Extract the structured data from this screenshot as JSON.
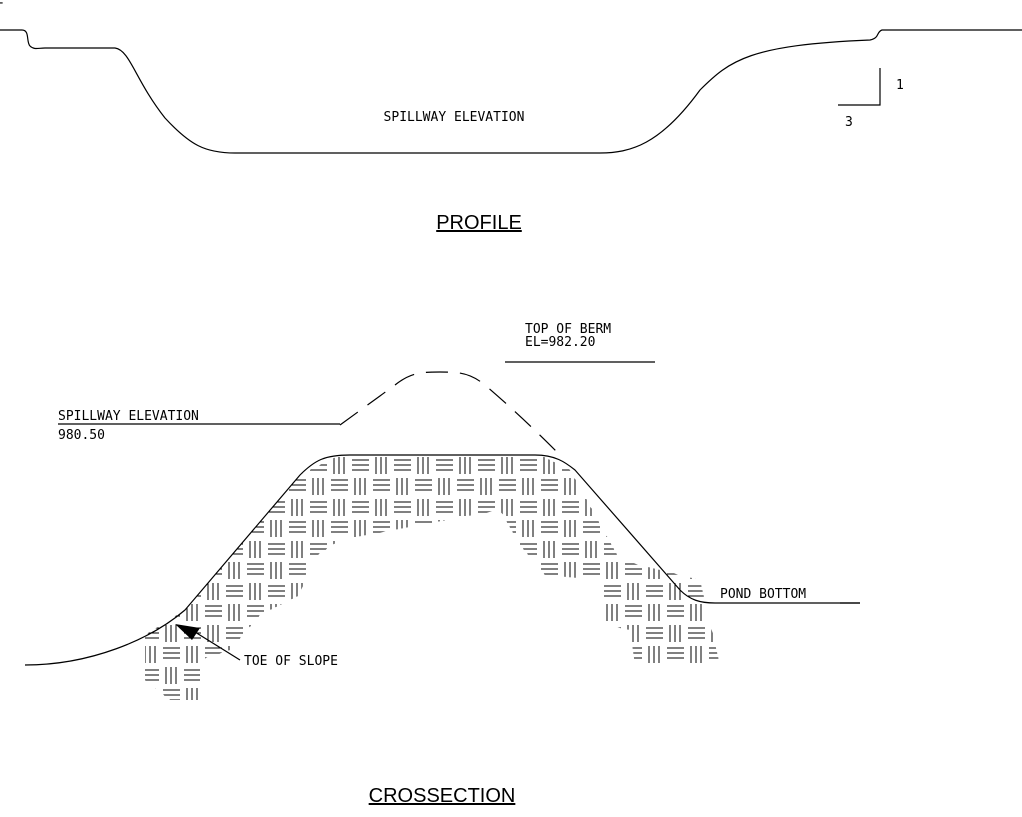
{
  "corner_mark": "F",
  "profile": {
    "label": "SPILLWAY ELEVATION",
    "slope_rise": "1",
    "slope_run": "3",
    "title": "PROFILE"
  },
  "crossection": {
    "top_of_berm": {
      "label": "TOP OF BERM",
      "elevation": "EL=982.20"
    },
    "spillway": {
      "label": "SPILLWAY ELEVATION",
      "elevation": "980.50"
    },
    "pond_bottom": "POND BOTTOM",
    "toe_of_slope": "TOE OF SLOPE",
    "title": "CROSSECTION"
  }
}
